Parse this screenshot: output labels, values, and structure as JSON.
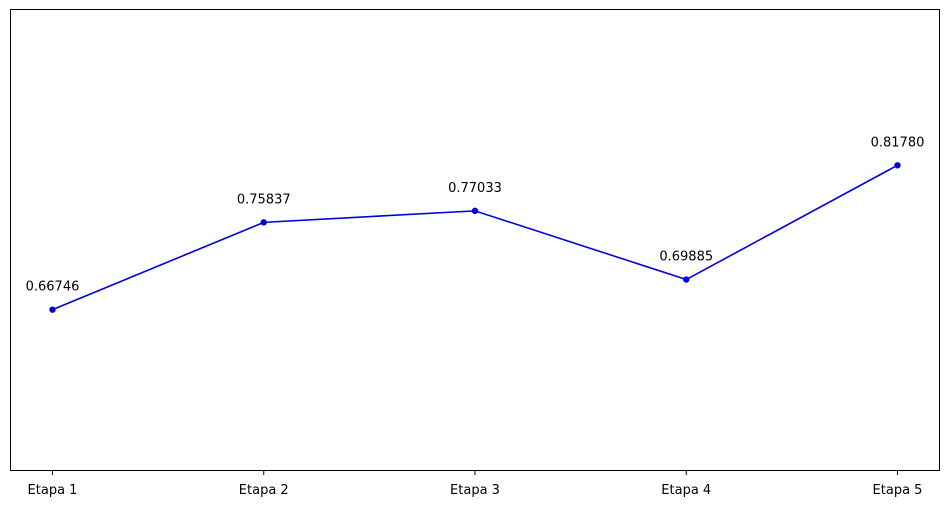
{
  "chart_data": {
    "type": "line",
    "categories": [
      "Etapa 1",
      "Etapa 2",
      "Etapa 3",
      "Etapa 4",
      "Etapa 5"
    ],
    "values": [
      0.66746,
      0.75837,
      0.77033,
      0.69885,
      0.8178
    ],
    "data_labels": [
      "0.66746",
      "0.75837",
      "0.77033",
      "0.69885",
      "0.81780"
    ],
    "title": "",
    "xlabel": "",
    "ylabel": "",
    "ylim": [
      0.5,
      0.98
    ],
    "grid": false,
    "y_ticks_visible": false,
    "line_color": "#0000dd",
    "marker": "circle"
  }
}
